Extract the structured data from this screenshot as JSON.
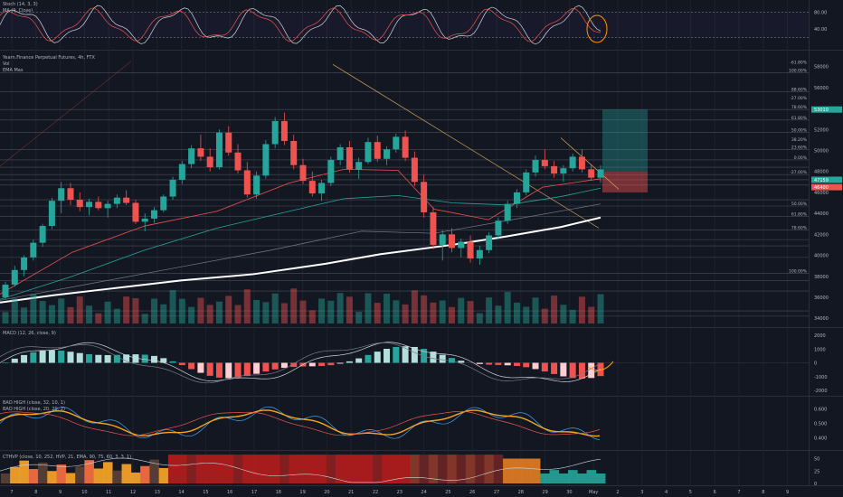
{
  "colors": {
    "background": "#131722",
    "up": "#26a69a",
    "down": "#ef5350",
    "grid": "#1e222d",
    "text": "#b2b5be",
    "white": "#ffffff",
    "orange": "#f5a623",
    "annotation": "#ff9800"
  },
  "panes": {
    "stoch": {
      "title": "Stoch (14, 3, 3)",
      "subtitle": "MA (9, Close)",
      "ticks": [
        "80.00",
        "40.00"
      ]
    },
    "main": {
      "title": "Yearn.Finance Perpetual Futures, 4h, FTX",
      "line2": "Vol",
      "line3": "EMA Mas",
      "price_ticks": [
        "58000",
        "56000",
        "54000",
        "52000",
        "50000",
        "48000",
        "46000",
        "44000",
        "42000",
        "40000",
        "38000",
        "36000",
        "34000"
      ],
      "fib_labels": [
        "-61.80%",
        "100.00%",
        "88.60%",
        "-27.00%",
        "78.60%",
        "61.80%",
        "50.00%",
        "38.20%",
        "23.60%",
        "0.00%",
        "-27.00%",
        "50.00%",
        "61.80%",
        "78.60%",
        "100.00%"
      ],
      "current_price": "47159",
      "red_tag": "46400",
      "green_tag": "53010"
    },
    "macd": {
      "title": "MACD (12, 26, close, 9)",
      "ticks": [
        "2000",
        "1000",
        "0",
        "-1000",
        "-2000"
      ]
    },
    "bad": {
      "title1": "BAD HIGH (close, 32, 10, 1)",
      "title2": "BAD HIGH (close, 20, 20, 2)",
      "ticks": [
        "0.600",
        "0.500",
        "0.400"
      ]
    },
    "ctvh": {
      "title": "CTHVP (close, 10, 252, HVP, 21, EMA, 90, 75, 60, 3, 3, 1)",
      "ticks": [
        "50",
        "25",
        "0"
      ]
    }
  },
  "chart_data": {
    "type": "candlestick",
    "x_labels": [
      "7",
      "8",
      "9",
      "10",
      "11",
      "12",
      "13",
      "14",
      "15",
      "16",
      "17",
      "18",
      "19",
      "20",
      "21",
      "22",
      "23",
      "24",
      "25",
      "26",
      "27",
      "28",
      "29",
      "30",
      "May",
      "2",
      "3",
      "4",
      "5",
      "6",
      "7",
      "8",
      "9"
    ],
    "ohlc_approx": [
      [
        36000,
        37500,
        35800,
        37200
      ],
      [
        37200,
        39000,
        37000,
        38600
      ],
      [
        38600,
        40000,
        38000,
        39800
      ],
      [
        39800,
        41500,
        39500,
        41200
      ],
      [
        41200,
        43000,
        40800,
        42800
      ],
      [
        42800,
        45500,
        42500,
        45200
      ],
      [
        45200,
        47000,
        44000,
        46400
      ],
      [
        46400,
        46900,
        44800,
        45300
      ],
      [
        45300,
        46000,
        44200,
        44600
      ],
      [
        44600,
        45400,
        43800,
        45100
      ],
      [
        45100,
        45600,
        44300,
        44500
      ],
      [
        44500,
        45200,
        43600,
        44900
      ],
      [
        44900,
        45800,
        44500,
        45500
      ],
      [
        45500,
        46200,
        44800,
        45000
      ],
      [
        45000,
        45300,
        43000,
        43200
      ],
      [
        43200,
        44000,
        42300,
        43500
      ],
      [
        43500,
        44600,
        43100,
        44300
      ],
      [
        44300,
        45800,
        44100,
        45600
      ],
      [
        45600,
        47500,
        45300,
        47200
      ],
      [
        47200,
        49000,
        46800,
        48700
      ],
      [
        48700,
        50500,
        48300,
        50200
      ],
      [
        50200,
        51500,
        49000,
        49400
      ],
      [
        49400,
        50200,
        48000,
        48400
      ],
      [
        48400,
        52000,
        48200,
        51700
      ],
      [
        51700,
        52300,
        49500,
        49800
      ],
      [
        49800,
        50600,
        47800,
        48100
      ],
      [
        48100,
        48900,
        45500,
        45800
      ],
      [
        45800,
        48000,
        45400,
        47600
      ],
      [
        47600,
        51000,
        47300,
        50600
      ],
      [
        50600,
        53200,
        50200,
        52800
      ],
      [
        52800,
        53600,
        50500,
        50900
      ],
      [
        50900,
        51500,
        48200,
        48600
      ],
      [
        48600,
        49200,
        46800,
        47100
      ],
      [
        47100,
        48000,
        45600,
        45900
      ],
      [
        45900,
        47200,
        45200,
        46900
      ],
      [
        46900,
        49400,
        46600,
        49100
      ],
      [
        49100,
        50600,
        48600,
        50300
      ],
      [
        50300,
        50900,
        47900,
        48200
      ],
      [
        48200,
        49300,
        47300,
        48900
      ],
      [
        48900,
        51200,
        48700,
        50800
      ],
      [
        50800,
        51400,
        48900,
        49200
      ],
      [
        49200,
        50400,
        48600,
        50100
      ],
      [
        50100,
        51600,
        49800,
        51300
      ],
      [
        51300,
        51900,
        49000,
        49300
      ],
      [
        49300,
        49900,
        46600,
        47000
      ],
      [
        47000,
        47700,
        43600,
        44100
      ],
      [
        44100,
        44600,
        40600,
        41000
      ],
      [
        41000,
        42400,
        39500,
        42000
      ],
      [
        42000,
        42600,
        40300,
        40700
      ],
      [
        40700,
        41600,
        39800,
        41300
      ],
      [
        41300,
        41900,
        39300,
        39700
      ],
      [
        39700,
        40900,
        39100,
        40500
      ],
      [
        40500,
        42200,
        40200,
        41900
      ],
      [
        41900,
        43600,
        41500,
        43300
      ],
      [
        43300,
        45200,
        43000,
        44900
      ],
      [
        44900,
        46300,
        44500,
        46000
      ],
      [
        46000,
        48200,
        45700,
        47900
      ],
      [
        47900,
        49500,
        47500,
        49100
      ],
      [
        49100,
        50100,
        48200,
        48500
      ],
      [
        48500,
        49000,
        47400,
        47800
      ],
      [
        47800,
        48600,
        47000,
        48300
      ],
      [
        48300,
        49700,
        48000,
        49400
      ],
      [
        49400,
        50100,
        47900,
        48200
      ],
      [
        48200,
        48700,
        47100,
        47400
      ],
      [
        47400,
        48600,
        46900,
        48200
      ]
    ]
  }
}
